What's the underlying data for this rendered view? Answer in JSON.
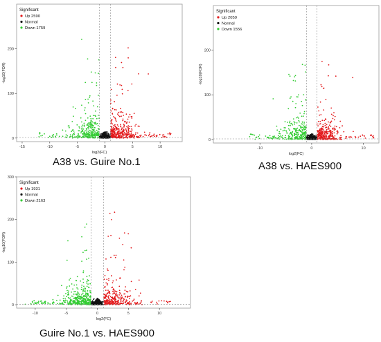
{
  "legend_title": "Significant",
  "colors": {
    "up": "#e31a1c",
    "normal": "#111111",
    "down": "#33cc33",
    "panel_border": "#9a9a9a",
    "threshold": "#888888"
  },
  "chart_data": [
    {
      "type": "scatter",
      "caption": "A38 vs. Guire No.1",
      "xlabel": "log2(FC)",
      "ylabel": "-log10(FDR)",
      "xlim": [
        -16,
        14
      ],
      "ylim": [
        -8,
        300
      ],
      "x_ticks": [
        -15,
        -10,
        -5,
        0,
        5,
        10
      ],
      "y_ticks": [
        0,
        100,
        200
      ],
      "thresholds": [
        -1,
        1
      ],
      "grid": false,
      "legend_position": "top-left",
      "series": [
        {
          "name": "Up 2590",
          "key": "up",
          "count": 2590
        },
        {
          "name": "Normal",
          "key": "normal"
        },
        {
          "name": "Down 1759",
          "key": "down",
          "count": 1759
        }
      ]
    },
    {
      "type": "scatter",
      "caption": "A38 vs. HAES900",
      "xlabel": "log2(FC)",
      "ylabel": "-log10(FDR)",
      "xlim": [
        -19,
        13
      ],
      "ylim": [
        -8,
        300
      ],
      "x_ticks": [
        -10,
        0,
        10
      ],
      "y_ticks": [
        0,
        100,
        200
      ],
      "thresholds": [
        -1,
        1
      ],
      "grid": false,
      "legend_position": "top-left",
      "series": [
        {
          "name": "Up 2059",
          "key": "up",
          "count": 2059
        },
        {
          "name": "Normal",
          "key": "normal"
        },
        {
          "name": "Down 1556",
          "key": "down",
          "count": 1556
        }
      ]
    },
    {
      "type": "scatter",
      "caption": "Guire No.1 vs. HAES900",
      "xlabel": "log2(FC)",
      "ylabel": "-log10(FDR)",
      "xlim": [
        -13,
        15
      ],
      "ylim": [
        -8,
        300
      ],
      "x_ticks": [
        -10,
        -5,
        0,
        5,
        10
      ],
      "y_ticks": [
        0,
        100,
        200,
        300
      ],
      "thresholds": [
        -1,
        1
      ],
      "grid": false,
      "legend_position": "top-left",
      "series": [
        {
          "name": "Up 1931",
          "key": "up",
          "count": 1931
        },
        {
          "name": "Normal",
          "key": "normal"
        },
        {
          "name": "Down 2163",
          "key": "down",
          "count": 2163
        }
      ]
    }
  ]
}
